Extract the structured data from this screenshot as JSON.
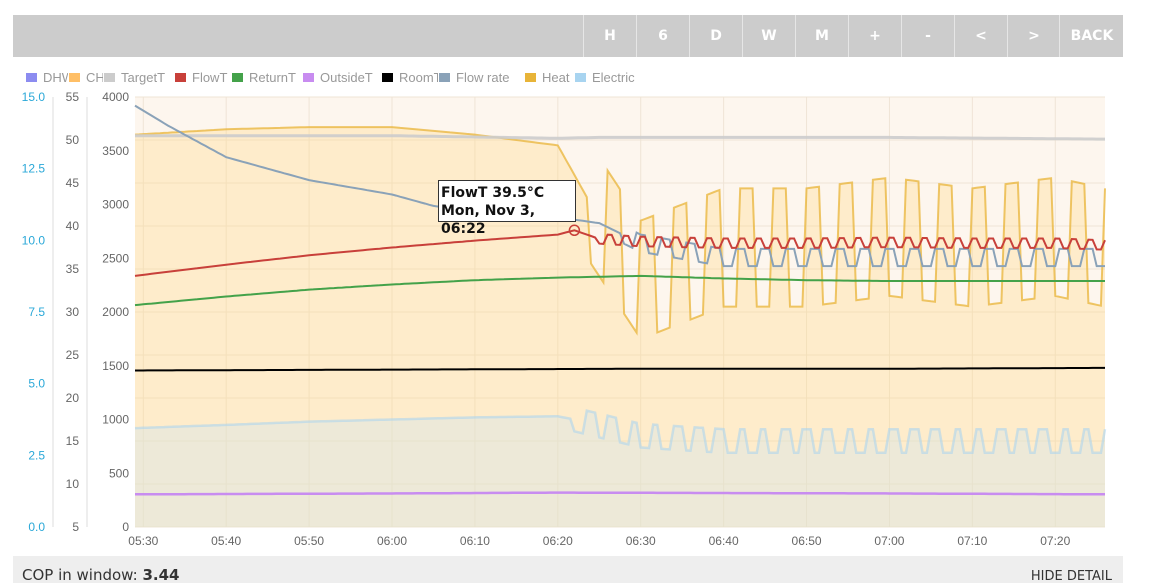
{
  "toolbar": {
    "buttons": [
      "H",
      "6",
      "D",
      "W",
      "M",
      "+",
      "-",
      "<",
      ">"
    ],
    "back_label": "BACK"
  },
  "legend": [
    {
      "name": "DHW",
      "color": "#8c8cf0"
    },
    {
      "name": "CH",
      "color": "#ffbf66"
    },
    {
      "name": "TargetT",
      "color": "#cccccc"
    },
    {
      "name": "FlowT",
      "color": "#c8403a"
    },
    {
      "name": "ReturnT",
      "color": "#44a24a"
    },
    {
      "name": "OutsideT",
      "color": "#c88cf0"
    },
    {
      "name": "RoomT",
      "color": "#000000"
    },
    {
      "name": "Flow rate",
      "color": "#8aa2b8"
    },
    {
      "name": "Heat",
      "color": "#e8b438"
    },
    {
      "name": "Electric",
      "color": "#a8d4f0"
    }
  ],
  "tooltip": {
    "line1": "FlowT 39.5°C",
    "line2": "Mon, Nov 3, 06:22"
  },
  "footer": {
    "cop_label": "COP in window: ",
    "cop_value": "3.44",
    "hide_detail": "HIDE DETAIL"
  },
  "chart_data": {
    "type": "line",
    "x_tick_labels": [
      "05:30",
      "05:40",
      "05:50",
      "06:00",
      "06:10",
      "06:20",
      "06:30",
      "06:40",
      "06:50",
      "07:00",
      "07:10",
      "07:20"
    ],
    "xlim": [
      "05:29",
      "07:26"
    ],
    "y_axes": {
      "flow_rate": {
        "ylim": [
          0,
          15
        ],
        "ticks": [
          "0.0",
          "2.5",
          "5.0",
          "7.5",
          "10.0",
          "12.5",
          "15.0"
        ],
        "color": "#2aa8d8"
      },
      "temperature": {
        "ylim": [
          5,
          55
        ],
        "ticks": [
          "5",
          "10",
          "15",
          "20",
          "25",
          "30",
          "35",
          "40",
          "45",
          "50",
          "55"
        ]
      },
      "power": {
        "ylim": [
          0,
          4000
        ],
        "ticks": [
          "0",
          "500",
          "1000",
          "1500",
          "2000",
          "2500",
          "3000",
          "3500",
          "4000"
        ]
      }
    },
    "series": [
      {
        "name": "TargetT",
        "axis": "temperature",
        "x": [
          "05:29",
          "06:00",
          "06:20",
          "06:25",
          "07:00",
          "07:26"
        ],
        "values": [
          50.5,
          50.5,
          50.2,
          50.3,
          50.3,
          50.1
        ]
      },
      {
        "name": "FlowT",
        "axis": "temperature",
        "x": [
          "05:29",
          "05:40",
          "05:50",
          "06:00",
          "06:10",
          "06:20",
          "06:22",
          "06:25",
          "06:30",
          "06:40",
          "06:50",
          "07:00",
          "07:10",
          "07:20",
          "07:26"
        ],
        "values": [
          34.2,
          35.5,
          36.6,
          37.5,
          38.3,
          39.0,
          39.5,
          38.5,
          38.2,
          38.0,
          38.0,
          38.1,
          38.0,
          38.0,
          37.8
        ]
      },
      {
        "name": "ReturnT",
        "axis": "temperature",
        "x": [
          "05:29",
          "05:40",
          "05:50",
          "06:00",
          "06:10",
          "06:20",
          "06:30",
          "06:40",
          "06:50",
          "07:00",
          "07:10",
          "07:20",
          "07:26"
        ],
        "values": [
          30.8,
          31.8,
          32.6,
          33.2,
          33.7,
          34.0,
          34.2,
          33.9,
          33.7,
          33.6,
          33.6,
          33.6,
          33.6
        ]
      },
      {
        "name": "OutsideT",
        "axis": "temperature",
        "x": [
          "05:29",
          "06:00",
          "06:20",
          "07:00",
          "07:26"
        ],
        "values": [
          8.8,
          8.9,
          9.0,
          8.9,
          8.8
        ]
      },
      {
        "name": "RoomT",
        "axis": "temperature",
        "x": [
          "05:29",
          "06:00",
          "06:30",
          "07:00",
          "07:26"
        ],
        "values": [
          23.2,
          23.3,
          23.4,
          23.4,
          23.5
        ]
      },
      {
        "name": "Flow rate",
        "axis": "flow_rate",
        "x": [
          "05:29",
          "05:33",
          "05:40",
          "05:45",
          "05:50",
          "06:00",
          "06:05",
          "06:10",
          "06:15",
          "06:20",
          "06:25",
          "06:30",
          "06:40",
          "06:50",
          "07:00",
          "07:10",
          "07:20",
          "07:26"
        ],
        "values": [
          14.7,
          14.0,
          12.9,
          12.5,
          12.1,
          11.6,
          11.2,
          11.0,
          10.8,
          10.8,
          10.6,
          9.9,
          9.4,
          9.4,
          9.4,
          9.4,
          9.4,
          9.4
        ]
      },
      {
        "name": "Heat",
        "axis": "power",
        "x": [
          "05:29",
          "05:40",
          "05:50",
          "06:00",
          "06:10",
          "06:20",
          "06:24",
          "06:30",
          "06:40",
          "06:50",
          "07:00",
          "07:10",
          "07:20",
          "07:26"
        ],
        "values": [
          3650,
          3700,
          3720,
          3720,
          3650,
          3550,
          3000,
          2300,
          2600,
          2600,
          2700,
          2600,
          2700,
          2600
        ]
      },
      {
        "name": "Electric",
        "axis": "power",
        "x": [
          "05:29",
          "05:40",
          "05:50",
          "06:00",
          "06:10",
          "06:20",
          "06:22",
          "06:30",
          "06:40",
          "06:50",
          "07:00",
          "07:10",
          "07:20",
          "07:26"
        ],
        "values": [
          920,
          950,
          980,
          1000,
          1020,
          1030,
          1000,
          850,
          800,
          800,
          800,
          800,
          800,
          800
        ]
      }
    ],
    "grid": true,
    "legend_position": "top-left",
    "tooltip_point": {
      "series": "FlowT",
      "x": "06:22",
      "y": 39.5
    }
  }
}
